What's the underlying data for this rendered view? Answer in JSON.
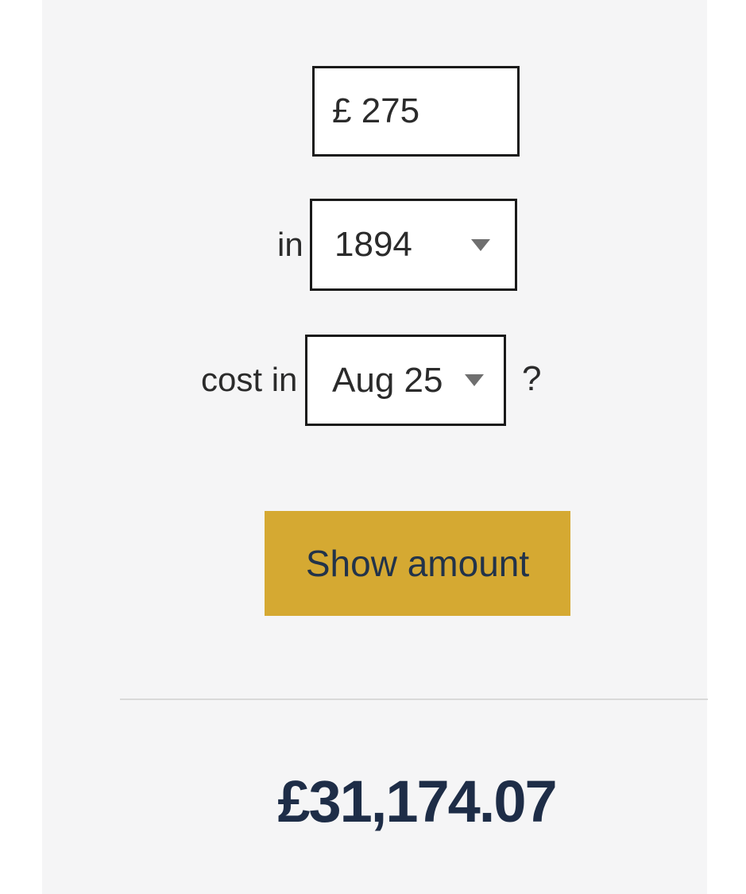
{
  "calculator": {
    "amount_input": {
      "value": "£ 275"
    },
    "year_row": {
      "label": "in",
      "selected_year": "1894"
    },
    "month_row": {
      "label": "cost in",
      "selected_month": "Aug 25",
      "suffix": "?"
    },
    "submit_button": {
      "label": "Show amount"
    },
    "result": {
      "amount": "£31,174.07"
    }
  },
  "icons": {
    "year_dropdown": "caret-down-icon",
    "month_dropdown": "caret-down-icon"
  },
  "colors": {
    "panel_background": "#f5f5f6",
    "box_border": "#1a1a1a",
    "button_background": "#d5a932",
    "button_text": "#22334a",
    "result_text": "#1e2d47",
    "value_text": "#2b2b2b",
    "arrow_gray": "#6f6f6f",
    "divider": "#d9d9d9"
  }
}
